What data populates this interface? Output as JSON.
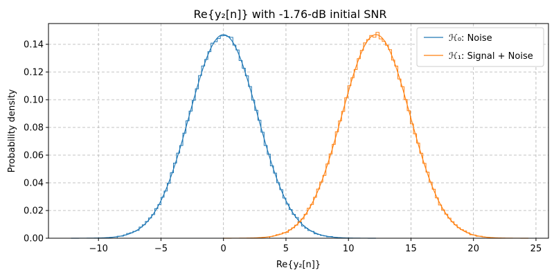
{
  "chart_data": {
    "type": "line",
    "title": "Re{y₂[n]} with -1.76-dB initial SNR",
    "xlabel": "Re{y₂[n]}",
    "ylabel": "Probability density",
    "xlim": [
      -14,
      26
    ],
    "ylim": [
      0,
      0.155
    ],
    "xticks": [
      -10,
      -5,
      0,
      5,
      10,
      15,
      20,
      25
    ],
    "xtick_labels": [
      "−10",
      "−5",
      "0",
      "5",
      "10",
      "15",
      "20",
      "25"
    ],
    "yticks": [
      0.0,
      0.02,
      0.04,
      0.06,
      0.08,
      0.1,
      0.12,
      0.14
    ],
    "ytick_labels": [
      "0.00",
      "0.02",
      "0.04",
      "0.06",
      "0.08",
      "0.10",
      "0.12",
      "0.14"
    ],
    "grid": true,
    "legend_position": "top-right",
    "series": [
      {
        "name": "ℋ₀: Noise",
        "color": "#1f77b4",
        "distribution": "gaussian",
        "mean": 0,
        "std": 2.72,
        "peak": 0.147,
        "x_range": [
          -12.2,
          12.2
        ]
      },
      {
        "name": "ℋ₁: Signal + Noise",
        "color": "#ff7f0e",
        "distribution": "gaussian",
        "mean": 12.2,
        "std": 2.72,
        "peak": 0.147,
        "x_range": [
          0,
          24.4
        ]
      }
    ]
  }
}
